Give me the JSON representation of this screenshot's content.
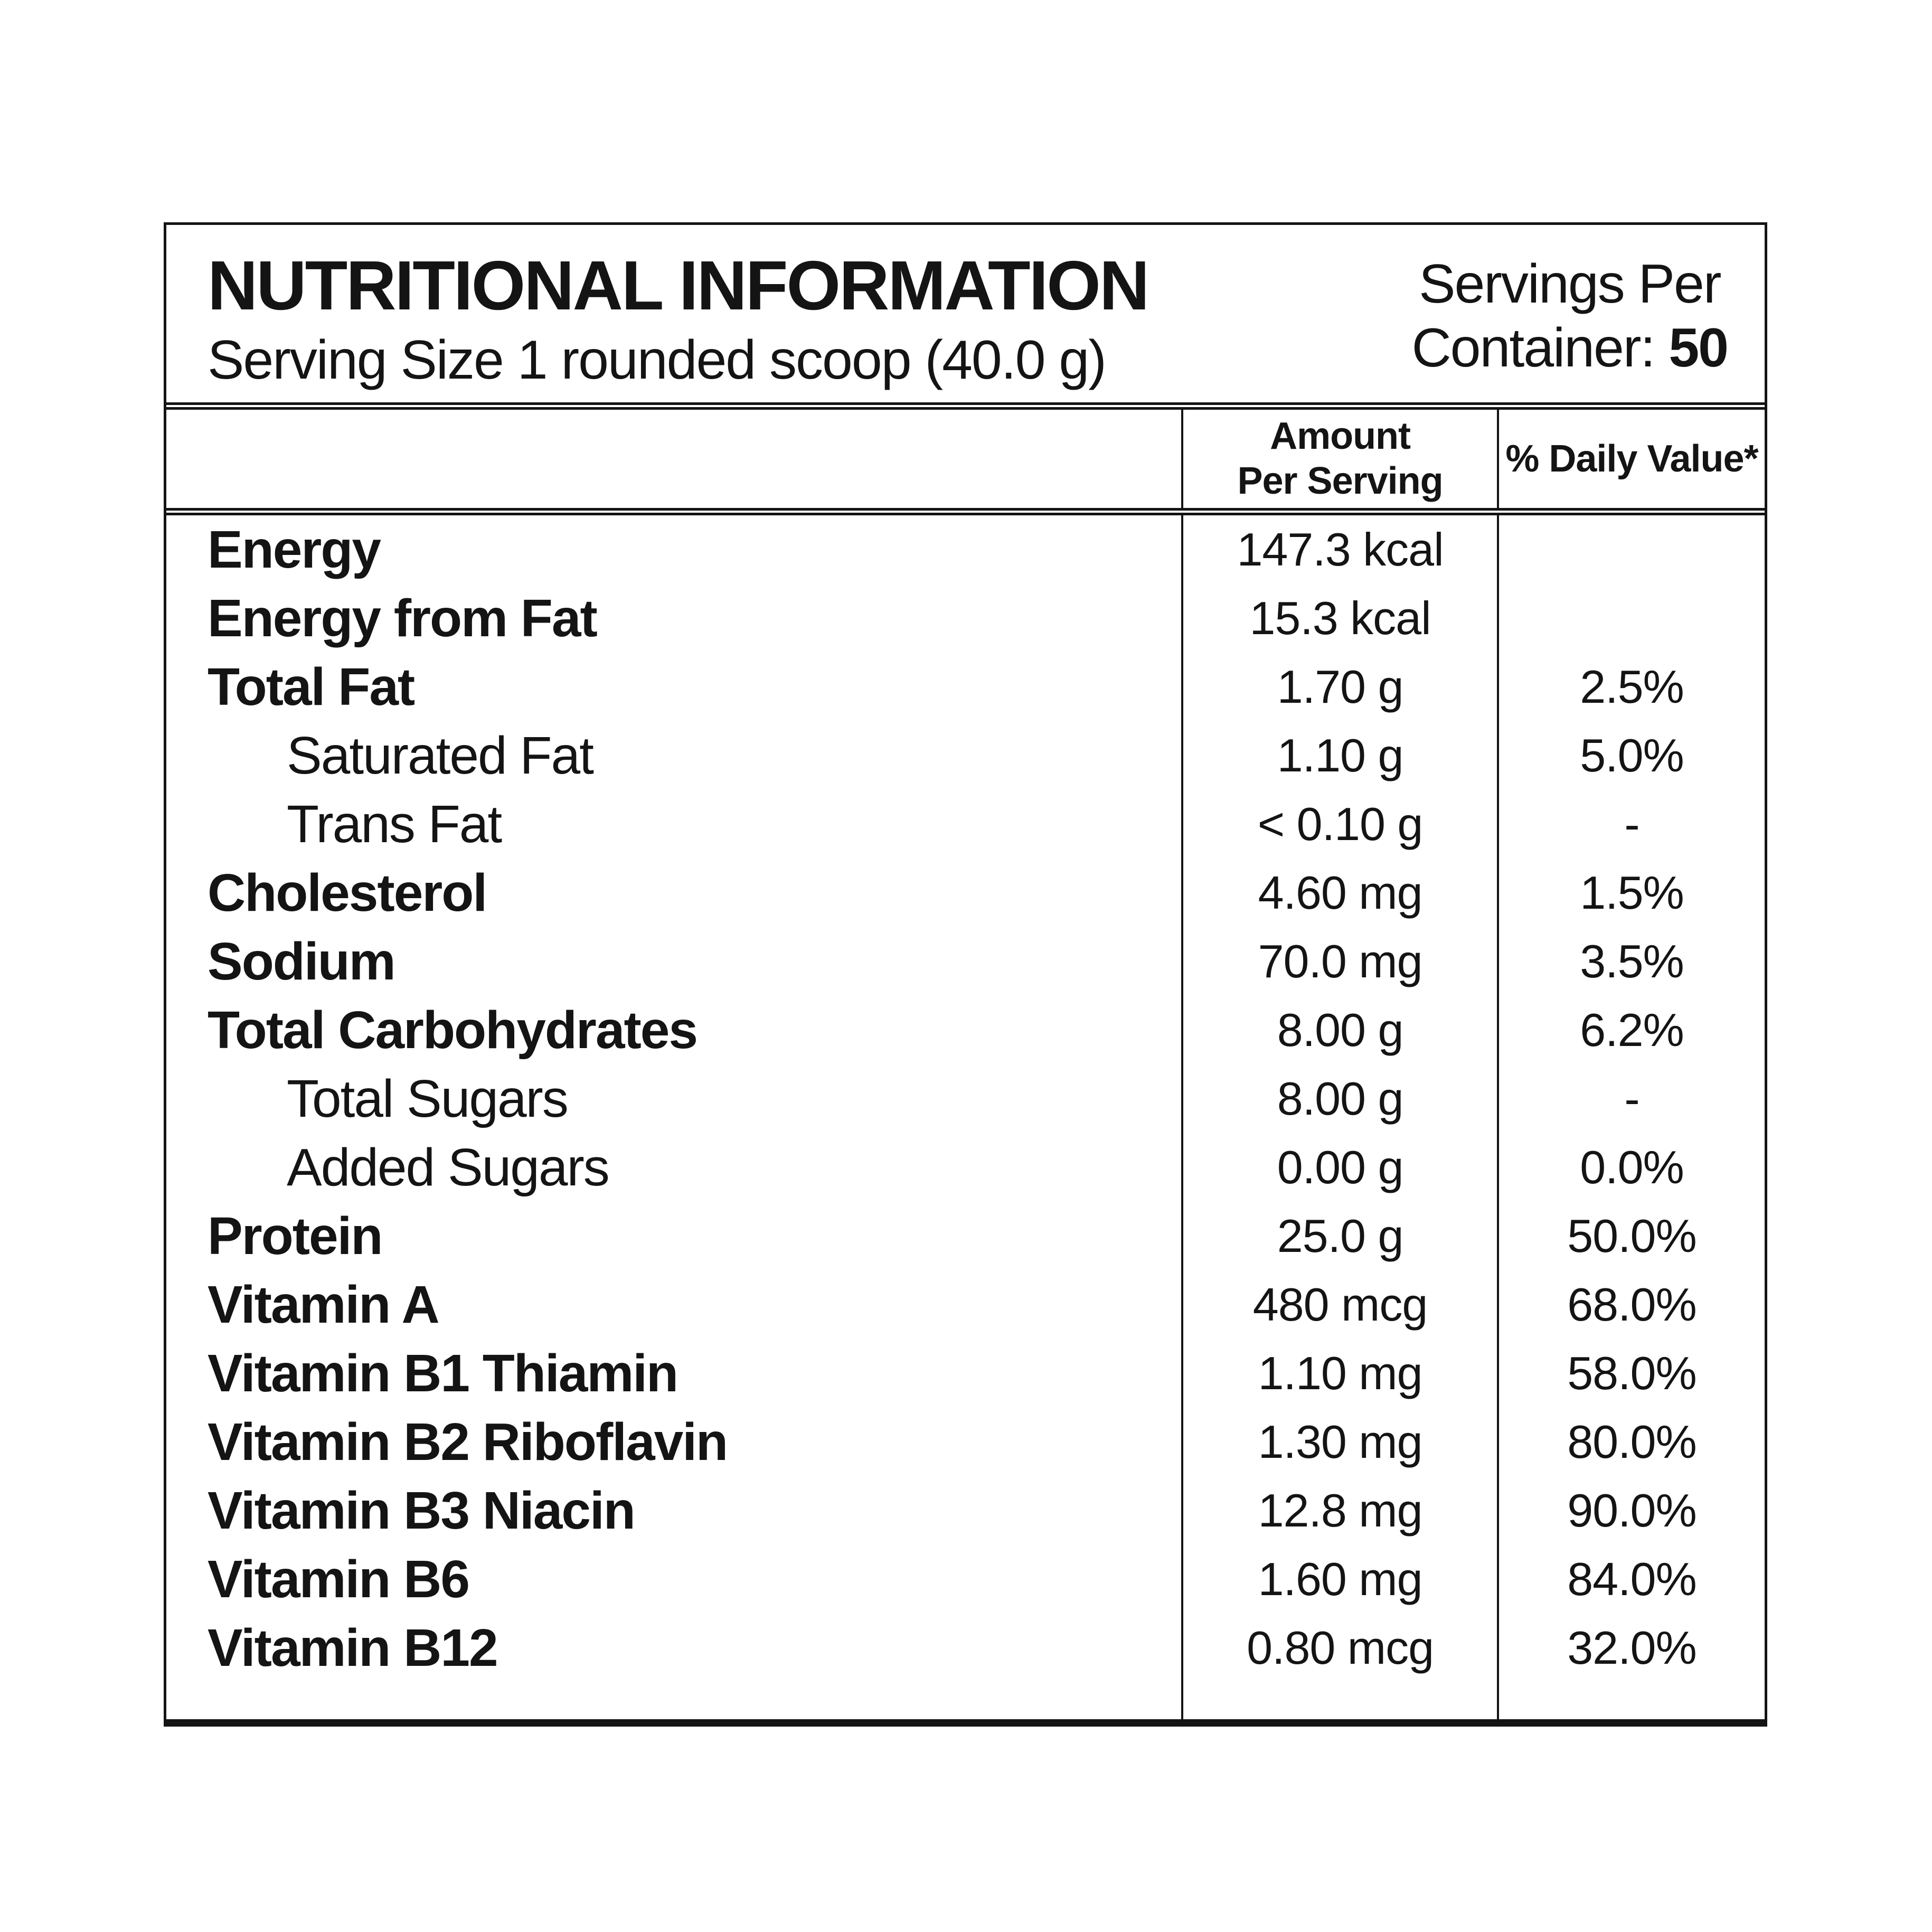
{
  "header": {
    "title": "NUTRITIONAL INFORMATION",
    "serving_size": "Serving Size 1 rounded scoop (40.0 g)",
    "servings_line1": "Servings Per",
    "servings_line2_label": "Container:",
    "servings_count": "50"
  },
  "columns": {
    "amount_line1": "Amount",
    "amount_line2": "Per Serving",
    "daily_value": "% Daily Value*"
  },
  "rows": [
    {
      "label": "Energy",
      "amount": "147.3 kcal",
      "dv": ""
    },
    {
      "label": "Energy from Fat",
      "amount": "15.3 kcal",
      "dv": ""
    },
    {
      "label": "Total Fat",
      "amount": "1.70 g",
      "dv": "2.5%"
    },
    {
      "label": "Saturated Fat",
      "amount": "1.10 g",
      "dv": "5.0%"
    },
    {
      "label": "Trans Fat",
      "amount": "< 0.10 g",
      "dv": "-"
    },
    {
      "label": "Cholesterol",
      "amount": "4.60 mg",
      "dv": "1.5%"
    },
    {
      "label": "Sodium",
      "amount": "70.0 mg",
      "dv": "3.5%"
    },
    {
      "label": "Total Carbohydrates",
      "amount": "8.00 g",
      "dv": "6.2%"
    },
    {
      "label": "Total Sugars",
      "amount": "8.00 g",
      "dv": "-"
    },
    {
      "label": "Added Sugars",
      "amount": "0.00 g",
      "dv": "0.0%"
    },
    {
      "label": "Protein",
      "amount": "25.0 g",
      "dv": "50.0%"
    },
    {
      "label": "Vitamin A",
      "amount": "480 mcg",
      "dv": "68.0%"
    },
    {
      "label": "Vitamin B1 Thiamin",
      "amount": "1.10 mg",
      "dv": "58.0%"
    },
    {
      "label": "Vitamin B2 Riboflavin",
      "amount": "1.30 mg",
      "dv": "80.0%"
    },
    {
      "label": "Vitamin B3 Niacin",
      "amount": "12.8 mg",
      "dv": "90.0%"
    },
    {
      "label": "Vitamin B6",
      "amount": "1.60 mg",
      "dv": "84.0%"
    },
    {
      "label": "Vitamin B12",
      "amount": "0.80 mcg",
      "dv": "32.0%"
    }
  ],
  "colors": {
    "ink": "#141414",
    "background": "#ffffff"
  }
}
